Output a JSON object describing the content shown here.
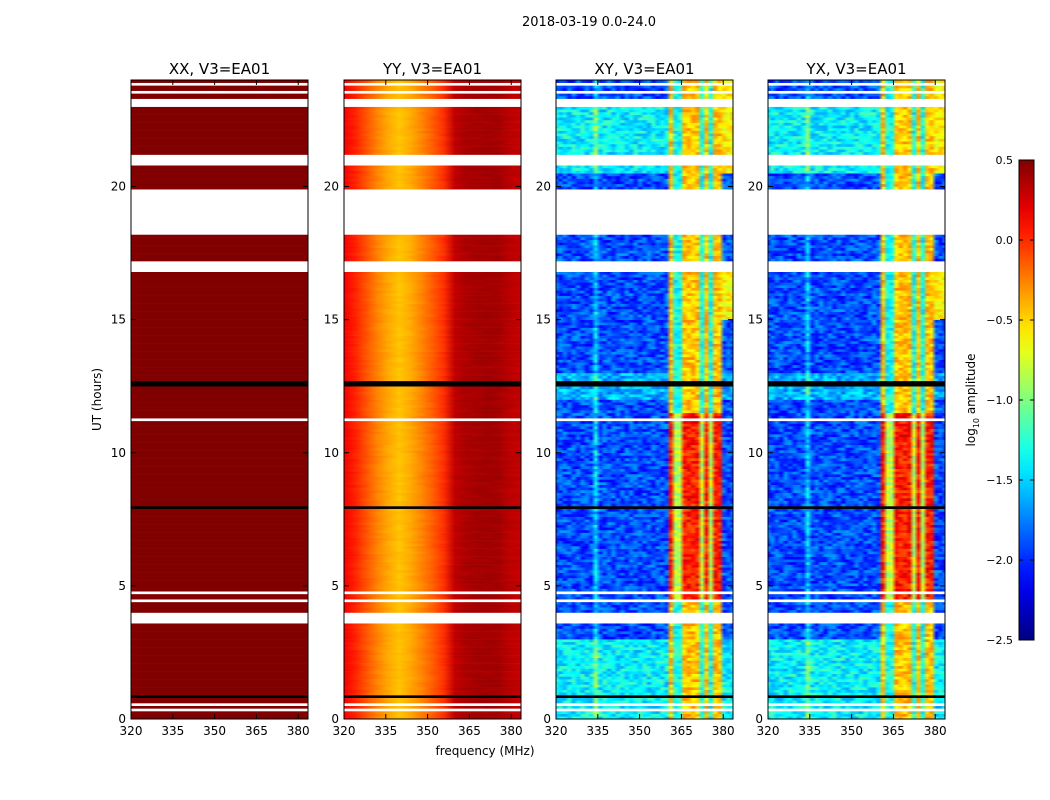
{
  "suptitle": "2018-03-19 0.0-24.0",
  "colorbar": {
    "label_main": "log",
    "label_sub": "10",
    "label_rest": " amplitude",
    "range": [
      -2.5,
      0.5
    ],
    "ticks": [
      0.5,
      0.0,
      -0.5,
      -1.0,
      -1.5,
      -2.0,
      -2.5
    ],
    "tick_labels": [
      "0.5",
      "0.0",
      "−0.5",
      "−1.0",
      "−1.5",
      "−2.0",
      "−2.5"
    ],
    "colormap": "jet"
  },
  "chart_data": [
    {
      "type": "heatmap",
      "title": "XX, V3=EA01",
      "xlabel": "",
      "ylabel": "UT (hours)",
      "xlim": [
        320,
        383.5
      ],
      "ylim": [
        0,
        24
      ],
      "xticks": [
        320,
        335,
        350,
        365,
        380
      ],
      "yticks": [
        0,
        5,
        10,
        15,
        20
      ],
      "kind": "saturated",
      "spectral_profile": {
        "freq": [
          320,
          383.5
        ],
        "log_amp": [
          0.5,
          0.5
        ]
      }
    },
    {
      "type": "heatmap",
      "title": "YY, V3=EA01",
      "xlabel": "frequency (MHz)",
      "ylabel": "",
      "xlim": [
        320,
        383.5
      ],
      "ylim": [
        0,
        24
      ],
      "xticks": [
        320,
        335,
        350,
        365,
        380
      ],
      "yticks": [
        0,
        5,
        10,
        15,
        20
      ],
      "kind": "auto",
      "spectral_profile": {
        "freq": [
          320,
          325,
          330,
          335,
          340,
          345,
          350,
          355,
          358,
          360,
          365,
          370,
          375,
          380,
          383.5
        ],
        "log_amp": [
          0.15,
          0.0,
          -0.2,
          -0.35,
          -0.45,
          -0.35,
          -0.2,
          -0.05,
          0.1,
          0.35,
          0.38,
          0.4,
          0.4,
          0.32,
          0.3
        ]
      }
    },
    {
      "type": "heatmap",
      "title": "XY, V3=EA01",
      "xlabel": "",
      "ylabel": "",
      "xlim": [
        320,
        383.5
      ],
      "ylim": [
        0,
        24
      ],
      "xticks": [
        320,
        335,
        350,
        365,
        380
      ],
      "yticks": [
        0,
        5,
        10,
        15,
        20
      ],
      "kind": "cross",
      "baseline_log_amp": -1.9,
      "rfi_band_mhz": [
        360,
        380
      ],
      "rfi_log_amp": -0.1
    },
    {
      "type": "heatmap",
      "title": "YX, V3=EA01",
      "xlabel": "",
      "ylabel": "",
      "xlim": [
        320,
        383.5
      ],
      "ylim": [
        0,
        24
      ],
      "xticks": [
        320,
        335,
        350,
        365,
        380
      ],
      "yticks": [
        0,
        5,
        10,
        15,
        20
      ],
      "kind": "cross",
      "baseline_log_amp": -1.9,
      "rfi_band_mhz": [
        360,
        380
      ],
      "rfi_log_amp": -0.1
    }
  ],
  "flagged_hours": [
    [
      0.3,
      0.38
    ],
    [
      0.55,
      0.62
    ],
    [
      2.18,
      2.24
    ],
    [
      2.78,
      2.84
    ],
    [
      3.28,
      3.34
    ],
    [
      3.62,
      4.02
    ],
    [
      4.45,
      4.5
    ],
    [
      4.72,
      4.78
    ],
    [
      6.38,
      6.44
    ],
    [
      6.88,
      6.94
    ],
    [
      7.18,
      7.24
    ],
    [
      8.98,
      9.04
    ],
    [
      11.18,
      11.26
    ],
    [
      11.48,
      11.54
    ],
    [
      12.88,
      12.94
    ],
    [
      14.18,
      14.24
    ],
    [
      15.48,
      15.54
    ],
    [
      15.78,
      15.84
    ],
    [
      16.08,
      16.14
    ],
    [
      16.75,
      17.15
    ],
    [
      17.48,
      17.54
    ],
    [
      17.78,
      17.84
    ],
    [
      18.2,
      19.9
    ],
    [
      20.85,
      21.2
    ],
    [
      21.68,
      21.74
    ],
    [
      22.28,
      22.34
    ],
    [
      22.48,
      22.54
    ],
    [
      23.0,
      23.35
    ],
    [
      23.5,
      23.58
    ],
    [
      23.8,
      23.86
    ]
  ],
  "zero_hours": [
    [
      0.78,
      0.86
    ],
    [
      1.48,
      1.54
    ],
    [
      4.18,
      4.24
    ],
    [
      5.28,
      5.33
    ],
    [
      6.58,
      6.63
    ],
    [
      7.85,
      8.02
    ],
    [
      8.28,
      8.33
    ],
    [
      9.18,
      9.24
    ],
    [
      9.48,
      9.53
    ],
    [
      10.48,
      10.53
    ],
    [
      12.18,
      12.24
    ],
    [
      12.48,
      12.68
    ],
    [
      13.28,
      13.33
    ],
    [
      13.58,
      13.63
    ],
    [
      14.98,
      15.04
    ],
    [
      17.18,
      17.24
    ],
    [
      23.38,
      23.45
    ]
  ]
}
